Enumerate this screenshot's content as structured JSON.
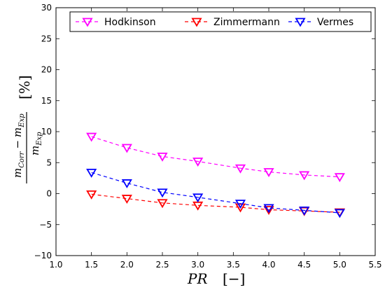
{
  "chart_data": {
    "type": "line",
    "title": "",
    "xlabel": {
      "symbol": "PR",
      "unit": "[−]"
    },
    "ylabel": {
      "numerator": "m",
      "numerator_sub1": "Corr",
      "minus": "−",
      "numerator2": "m",
      "numerator_sub2": "Exp",
      "denominator": "m",
      "denominator_sub": "Exp",
      "unit": "[%]"
    },
    "xlim": [
      1.0,
      5.5
    ],
    "ylim": [
      -10,
      30
    ],
    "xticks": [
      1.0,
      1.5,
      2.0,
      2.5,
      3.0,
      3.5,
      4.0,
      4.5,
      5.0,
      5.5
    ],
    "xtick_labels": [
      "1.0",
      "1.5",
      "2.0",
      "2.5",
      "3.0",
      "3.5",
      "4.0",
      "4.5",
      "5.0",
      "5.5"
    ],
    "yticks": [
      -10,
      -5,
      0,
      5,
      10,
      15,
      20,
      25,
      30
    ],
    "ytick_labels": [
      "−10",
      "−5",
      "0",
      "5",
      "10",
      "15",
      "20",
      "25",
      "30"
    ],
    "grid": false,
    "legend_position": "top",
    "series": [
      {
        "name": "Hodkinson",
        "color": "#ff00ff",
        "marker": "triangle-down",
        "x": [
          1.5,
          2.0,
          2.5,
          3.0,
          3.6,
          4.0,
          4.5,
          5.0
        ],
        "y": [
          9.2,
          7.4,
          6.0,
          5.2,
          4.1,
          3.5,
          3.0,
          2.7
        ]
      },
      {
        "name": "Zimmermann",
        "color": "#ff0000",
        "marker": "triangle-down",
        "x": [
          1.5,
          2.0,
          2.5,
          3.0,
          3.6,
          4.0,
          4.5,
          5.0
        ],
        "y": [
          -0.1,
          -0.8,
          -1.5,
          -1.9,
          -2.2,
          -2.6,
          -2.8,
          -3.0
        ]
      },
      {
        "name": "Vermes",
        "color": "#0000ff",
        "marker": "triangle-down",
        "x": [
          1.5,
          2.0,
          2.5,
          3.0,
          3.6,
          4.0,
          4.5,
          5.0
        ],
        "y": [
          3.4,
          1.7,
          0.2,
          -0.6,
          -1.6,
          -2.3,
          -2.7,
          -3.1
        ]
      }
    ]
  }
}
